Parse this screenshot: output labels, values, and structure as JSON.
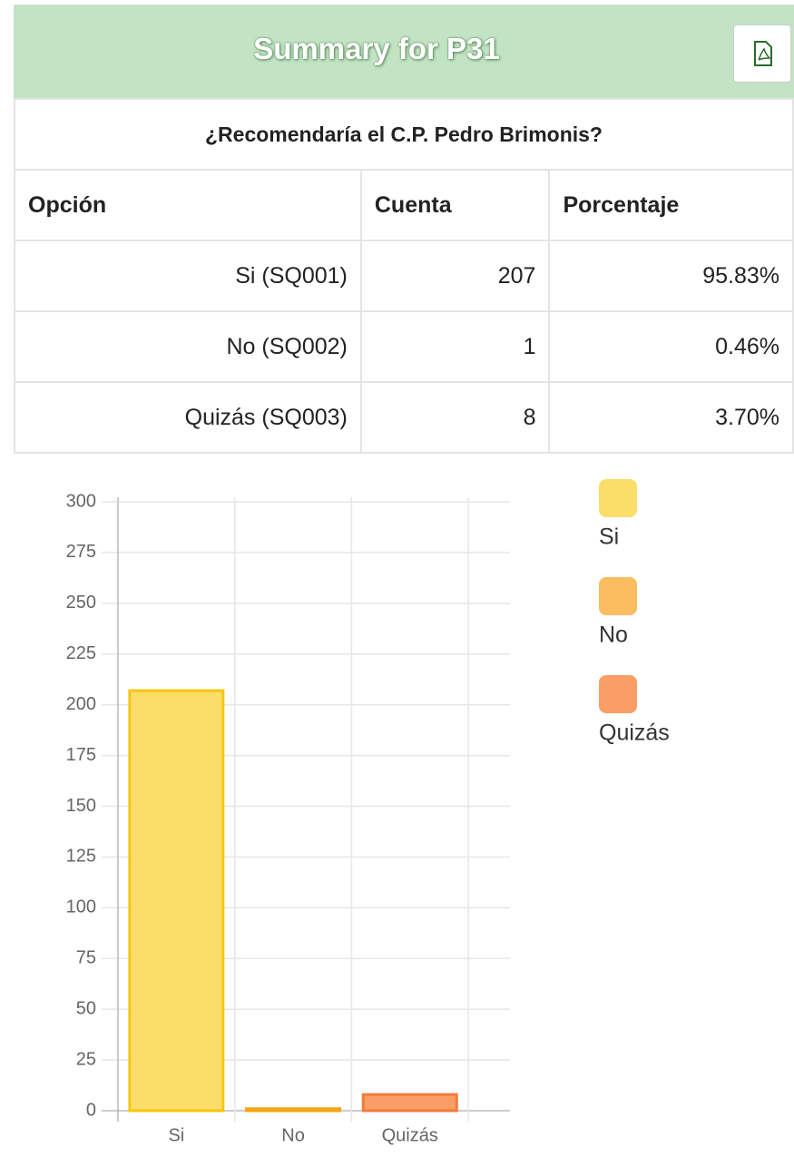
{
  "header": {
    "title": "Summary for P31"
  },
  "question": "¿Recomendaría el C.P. Pedro Brimonis?",
  "table": {
    "columns": [
      "Opción",
      "Cuenta",
      "Porcentaje"
    ],
    "rows": [
      [
        "Si (SQ001)",
        "207",
        "95.83%"
      ],
      [
        "No (SQ002)",
        "1",
        "0.46%"
      ],
      [
        "Quizás (SQ003)",
        "8",
        "3.70%"
      ]
    ]
  },
  "chart_data": {
    "type": "bar",
    "categories": [
      "Si",
      "No",
      "Quizás"
    ],
    "values": [
      207,
      1,
      8
    ],
    "colors": [
      "#fbdd6a",
      "#fbbd5f",
      "#fb9e66"
    ],
    "border_colors": [
      "#f5c712",
      "#f6a312",
      "#f47a3c"
    ],
    "ylim": [
      0,
      300
    ],
    "yticks": [
      0,
      25,
      50,
      75,
      100,
      125,
      150,
      175,
      200,
      225,
      250,
      275,
      300
    ],
    "grid": true,
    "legend": "right"
  }
}
